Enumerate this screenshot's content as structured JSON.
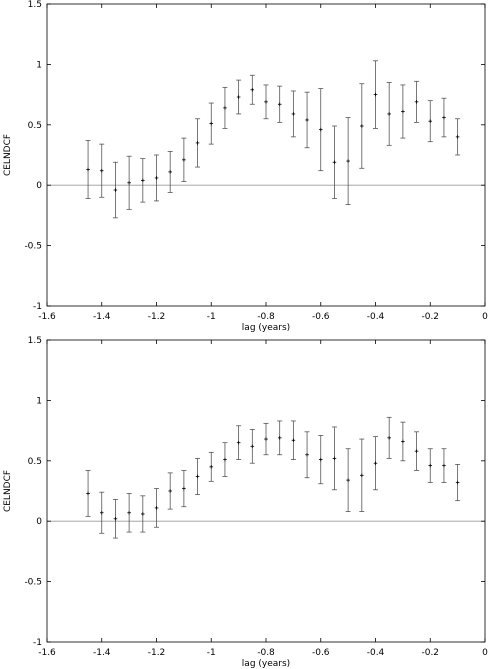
{
  "chart_data": [
    {
      "type": "scatter",
      "xlabel": "lag (years)",
      "ylabel": "CELNDCF",
      "xlim": [
        -1.6,
        0
      ],
      "ylim": [
        -1,
        1.5
      ],
      "xticks": [
        "-1.6",
        "-1.4",
        "-1.2",
        "-1",
        "-0.8",
        "-0.6",
        "-0.4",
        "-0.2",
        "0"
      ],
      "yticks": [
        "-1",
        "-0.5",
        "0",
        "0.5",
        "1",
        "1.5"
      ],
      "zero_line": true,
      "series": [
        {
          "x": [
            -1.45,
            -1.4,
            -1.35,
            -1.3,
            -1.25,
            -1.2,
            -1.15,
            -1.1,
            -1.05,
            -1.0,
            -0.95,
            -0.9,
            -0.85,
            -0.8,
            -0.75,
            -0.7,
            -0.65,
            -0.6,
            -0.55,
            -0.5,
            -0.45,
            -0.4,
            -0.35,
            -0.3,
            -0.25,
            -0.2,
            -0.15,
            -0.1
          ],
          "y": [
            0.13,
            0.12,
            -0.04,
            0.02,
            0.04,
            0.06,
            0.11,
            0.21,
            0.35,
            0.51,
            0.64,
            0.73,
            0.79,
            0.69,
            0.67,
            0.59,
            0.54,
            0.46,
            0.19,
            0.2,
            0.49,
            0.75,
            0.59,
            0.61,
            0.69,
            0.53,
            0.56,
            0.4
          ],
          "err": [
            0.24,
            0.22,
            0.23,
            0.22,
            0.18,
            0.19,
            0.17,
            0.18,
            0.2,
            0.17,
            0.17,
            0.14,
            0.12,
            0.14,
            0.15,
            0.19,
            0.23,
            0.34,
            0.3,
            0.36,
            0.35,
            0.28,
            0.26,
            0.22,
            0.17,
            0.17,
            0.16,
            0.15
          ]
        }
      ]
    },
    {
      "type": "scatter",
      "xlabel": "lag (years)",
      "ylabel": "CELNDCF",
      "xlim": [
        -1.6,
        0
      ],
      "ylim": [
        -1,
        1.5
      ],
      "xticks": [
        "-1.6",
        "-1.4",
        "-1.2",
        "-1",
        "-0.8",
        "-0.6",
        "-0.4",
        "-0.2",
        "0"
      ],
      "yticks": [
        "-1",
        "-0.5",
        "0",
        "0.5",
        "1",
        "1.5"
      ],
      "zero_line": true,
      "series": [
        {
          "x": [
            -1.45,
            -1.4,
            -1.35,
            -1.3,
            -1.25,
            -1.2,
            -1.15,
            -1.1,
            -1.05,
            -1.0,
            -0.95,
            -0.9,
            -0.85,
            -0.8,
            -0.75,
            -0.7,
            -0.65,
            -0.6,
            -0.55,
            -0.5,
            -0.45,
            -0.4,
            -0.35,
            -0.3,
            -0.25,
            -0.2,
            -0.15,
            -0.1
          ],
          "y": [
            0.23,
            0.07,
            0.02,
            0.07,
            0.06,
            0.11,
            0.25,
            0.27,
            0.37,
            0.45,
            0.51,
            0.65,
            0.62,
            0.68,
            0.69,
            0.67,
            0.55,
            0.51,
            0.52,
            0.34,
            0.38,
            0.48,
            0.69,
            0.66,
            0.58,
            0.46,
            0.46,
            0.32
          ],
          "err": [
            0.19,
            0.17,
            0.16,
            0.16,
            0.15,
            0.16,
            0.15,
            0.15,
            0.15,
            0.12,
            0.14,
            0.14,
            0.14,
            0.13,
            0.14,
            0.16,
            0.19,
            0.2,
            0.26,
            0.26,
            0.3,
            0.22,
            0.17,
            0.16,
            0.16,
            0.14,
            0.14,
            0.15
          ]
        }
      ]
    }
  ]
}
